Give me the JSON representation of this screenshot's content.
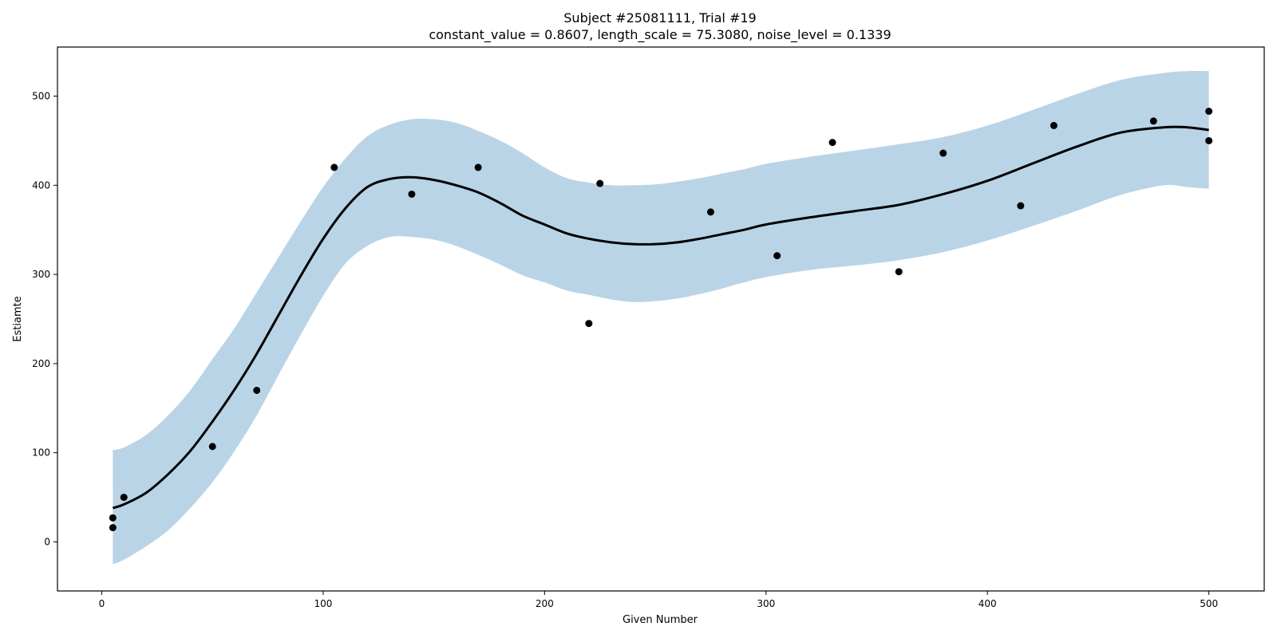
{
  "chart_data": {
    "type": "scatter",
    "title": "Subject #25081111, Trial #19",
    "subtitle": "constant_value = 0.8607,  length_scale = 75.3080,  noise_level = 0.1339",
    "xlabel": "Given Number",
    "ylabel": "Estiamte",
    "xlim": [
      -20,
      525
    ],
    "ylim": [
      -55,
      555
    ],
    "x_ticks": [
      0,
      100,
      200,
      300,
      400,
      500
    ],
    "y_ticks": [
      0,
      100,
      200,
      300,
      400,
      500
    ],
    "grid": false,
    "colors": {
      "points": "#000000",
      "mean": "#000000",
      "band": "#bad4e7"
    },
    "points": [
      {
        "x": 5,
        "y": 27
      },
      {
        "x": 5,
        "y": 16
      },
      {
        "x": 10,
        "y": 50
      },
      {
        "x": 50,
        "y": 107
      },
      {
        "x": 70,
        "y": 170
      },
      {
        "x": 105,
        "y": 420
      },
      {
        "x": 140,
        "y": 390
      },
      {
        "x": 170,
        "y": 420
      },
      {
        "x": 220,
        "y": 245
      },
      {
        "x": 225,
        "y": 402
      },
      {
        "x": 275,
        "y": 370
      },
      {
        "x": 305,
        "y": 321
      },
      {
        "x": 330,
        "y": 448
      },
      {
        "x": 360,
        "y": 303
      },
      {
        "x": 380,
        "y": 436
      },
      {
        "x": 415,
        "y": 377
      },
      {
        "x": 430,
        "y": 467
      },
      {
        "x": 475,
        "y": 472
      },
      {
        "x": 500,
        "y": 483
      },
      {
        "x": 500,
        "y": 450
      }
    ],
    "mean_curve": {
      "x": [
        5,
        10,
        20,
        30,
        40,
        50,
        60,
        70,
        80,
        90,
        100,
        110,
        120,
        130,
        140,
        150,
        160,
        170,
        180,
        190,
        200,
        210,
        220,
        230,
        240,
        250,
        260,
        270,
        280,
        290,
        300,
        320,
        340,
        360,
        380,
        400,
        420,
        440,
        460,
        480,
        490,
        500
      ],
      "y": [
        38,
        42,
        55,
        76,
        102,
        135,
        171,
        211,
        255,
        299,
        340,
        374,
        398,
        407,
        409,
        406,
        400,
        392,
        380,
        366,
        356,
        346,
        340,
        336,
        334,
        334,
        336,
        340,
        345,
        350,
        356,
        364,
        371,
        378,
        390,
        405,
        424,
        443,
        459,
        465,
        465,
        462
      ]
    },
    "band_upper": {
      "x": [
        5,
        10,
        20,
        30,
        40,
        50,
        60,
        70,
        80,
        90,
        100,
        110,
        120,
        130,
        140,
        150,
        160,
        170,
        180,
        190,
        200,
        210,
        220,
        230,
        240,
        250,
        260,
        270,
        280,
        290,
        300,
        320,
        340,
        360,
        380,
        400,
        420,
        440,
        460,
        480,
        490,
        500
      ],
      "y": [
        103,
        106,
        120,
        142,
        170,
        205,
        240,
        280,
        320,
        360,
        398,
        430,
        455,
        468,
        474,
        474,
        470,
        461,
        450,
        436,
        420,
        408,
        403,
        400,
        400,
        401,
        404,
        408,
        413,
        418,
        424,
        432,
        439,
        446,
        454,
        467,
        484,
        502,
        518,
        526,
        528,
        528
      ]
    },
    "band_lower": {
      "x": [
        5,
        10,
        20,
        30,
        40,
        50,
        60,
        70,
        80,
        90,
        100,
        110,
        120,
        130,
        140,
        150,
        160,
        170,
        180,
        190,
        200,
        210,
        220,
        230,
        240,
        250,
        260,
        270,
        280,
        290,
        300,
        320,
        340,
        360,
        380,
        400,
        420,
        440,
        460,
        480,
        490,
        500
      ],
      "y": [
        -25,
        -20,
        -5,
        13,
        38,
        67,
        102,
        142,
        188,
        233,
        276,
        312,
        332,
        342,
        342,
        339,
        332,
        322,
        311,
        299,
        291,
        282,
        277,
        272,
        269,
        270,
        273,
        278,
        284,
        291,
        297,
        305,
        310,
        316,
        325,
        338,
        354,
        371,
        389,
        400,
        398,
        396
      ]
    }
  }
}
